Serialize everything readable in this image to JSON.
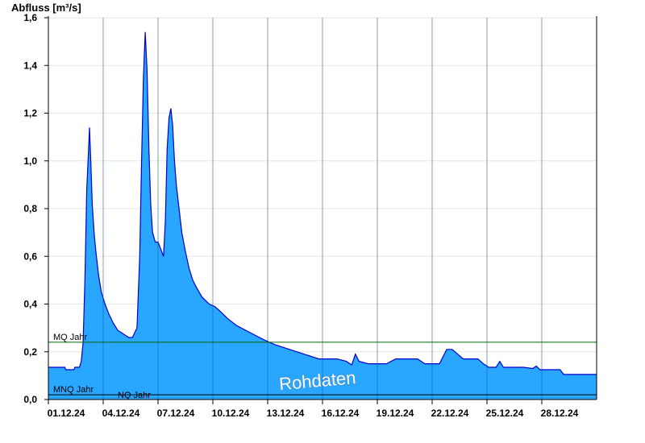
{
  "chart_data": {
    "type": "area",
    "title": "",
    "ylabel": "Abfluss [m³/s]",
    "xlabel": "",
    "ylim": [
      0,
      1.6
    ],
    "yticks": [
      "0,0",
      "0,2",
      "0,4",
      "0,6",
      "0,8",
      "1,0",
      "1,2",
      "1,4",
      "1,6"
    ],
    "xlim_days": [
      0,
      30
    ],
    "xticks": [
      {
        "label": "01.12.24",
        "day": 0
      },
      {
        "label": "04.12.24",
        "day": 3
      },
      {
        "label": "07.12.24",
        "day": 6
      },
      {
        "label": "10.12.24",
        "day": 9
      },
      {
        "label": "13.12.24",
        "day": 12
      },
      {
        "label": "16.12.24",
        "day": 15
      },
      {
        "label": "19.12.24",
        "day": 18
      },
      {
        "label": "22.12.24",
        "day": 21
      },
      {
        "label": "25.12.24",
        "day": 24
      },
      {
        "label": "28.12.24",
        "day": 27
      }
    ],
    "grid": true,
    "colors": {
      "fill": "#29a6ff",
      "line": "#0000cc",
      "reference": "#006400",
      "grid": "#e6e6e6",
      "vgrid": "#1a5a8a"
    },
    "reference_lines": [
      {
        "label": "MQ Jahr",
        "value": 0.24
      },
      {
        "label": "MNQ Jahr",
        "value": 0.02
      },
      {
        "label": "NQ Jahr",
        "value": 0.02
      }
    ],
    "watermark": "Rohdaten",
    "series": [
      {
        "name": "",
        "points": [
          [
            0.0,
            0.135
          ],
          [
            0.9,
            0.135
          ],
          [
            0.95,
            0.125
          ],
          [
            1.4,
            0.125
          ],
          [
            1.45,
            0.135
          ],
          [
            1.7,
            0.135
          ],
          [
            1.8,
            0.16
          ],
          [
            1.9,
            0.24
          ],
          [
            2.0,
            0.5
          ],
          [
            2.1,
            0.88
          ],
          [
            2.2,
            1.05
          ],
          [
            2.25,
            1.14
          ],
          [
            2.32,
            1.0
          ],
          [
            2.4,
            0.82
          ],
          [
            2.5,
            0.7
          ],
          [
            2.6,
            0.62
          ],
          [
            2.75,
            0.52
          ],
          [
            2.9,
            0.45
          ],
          [
            3.1,
            0.4
          ],
          [
            3.3,
            0.36
          ],
          [
            3.55,
            0.32
          ],
          [
            3.8,
            0.29
          ],
          [
            4.0,
            0.28
          ],
          [
            4.2,
            0.27
          ],
          [
            4.4,
            0.26
          ],
          [
            4.6,
            0.26
          ],
          [
            4.85,
            0.3
          ],
          [
            5.0,
            0.6
          ],
          [
            5.1,
            1.0
          ],
          [
            5.2,
            1.35
          ],
          [
            5.3,
            1.54
          ],
          [
            5.4,
            1.38
          ],
          [
            5.5,
            1.05
          ],
          [
            5.6,
            0.82
          ],
          [
            5.7,
            0.7
          ],
          [
            5.85,
            0.66
          ],
          [
            6.0,
            0.66
          ],
          [
            6.1,
            0.64
          ],
          [
            6.2,
            0.62
          ],
          [
            6.3,
            0.6
          ],
          [
            6.4,
            0.75
          ],
          [
            6.5,
            1.05
          ],
          [
            6.6,
            1.18
          ],
          [
            6.7,
            1.22
          ],
          [
            6.8,
            1.15
          ],
          [
            6.9,
            1.0
          ],
          [
            7.0,
            0.9
          ],
          [
            7.15,
            0.8
          ],
          [
            7.3,
            0.7
          ],
          [
            7.5,
            0.62
          ],
          [
            7.7,
            0.55
          ],
          [
            7.9,
            0.5
          ],
          [
            8.1,
            0.47
          ],
          [
            8.4,
            0.43
          ],
          [
            8.8,
            0.4
          ],
          [
            9.1,
            0.39
          ],
          [
            9.4,
            0.37
          ],
          [
            9.8,
            0.34
          ],
          [
            10.3,
            0.31
          ],
          [
            10.8,
            0.29
          ],
          [
            11.3,
            0.27
          ],
          [
            11.8,
            0.25
          ],
          [
            12.4,
            0.23
          ],
          [
            13.2,
            0.21
          ],
          [
            14.0,
            0.19
          ],
          [
            14.8,
            0.17
          ],
          [
            15.8,
            0.17
          ],
          [
            16.3,
            0.16
          ],
          [
            16.6,
            0.145
          ],
          [
            16.8,
            0.19
          ],
          [
            17.0,
            0.16
          ],
          [
            17.5,
            0.15
          ],
          [
            18.5,
            0.15
          ],
          [
            19.0,
            0.17
          ],
          [
            20.2,
            0.17
          ],
          [
            20.6,
            0.15
          ],
          [
            21.4,
            0.15
          ],
          [
            21.6,
            0.18
          ],
          [
            21.8,
            0.21
          ],
          [
            22.1,
            0.21
          ],
          [
            22.4,
            0.19
          ],
          [
            22.7,
            0.17
          ],
          [
            23.5,
            0.17
          ],
          [
            23.8,
            0.15
          ],
          [
            24.1,
            0.135
          ],
          [
            24.5,
            0.135
          ],
          [
            24.7,
            0.16
          ],
          [
            24.9,
            0.135
          ],
          [
            26.0,
            0.135
          ],
          [
            26.5,
            0.13
          ],
          [
            26.7,
            0.14
          ],
          [
            26.9,
            0.125
          ],
          [
            28.0,
            0.125
          ],
          [
            28.2,
            0.105
          ],
          [
            30.0,
            0.105
          ]
        ]
      }
    ]
  }
}
